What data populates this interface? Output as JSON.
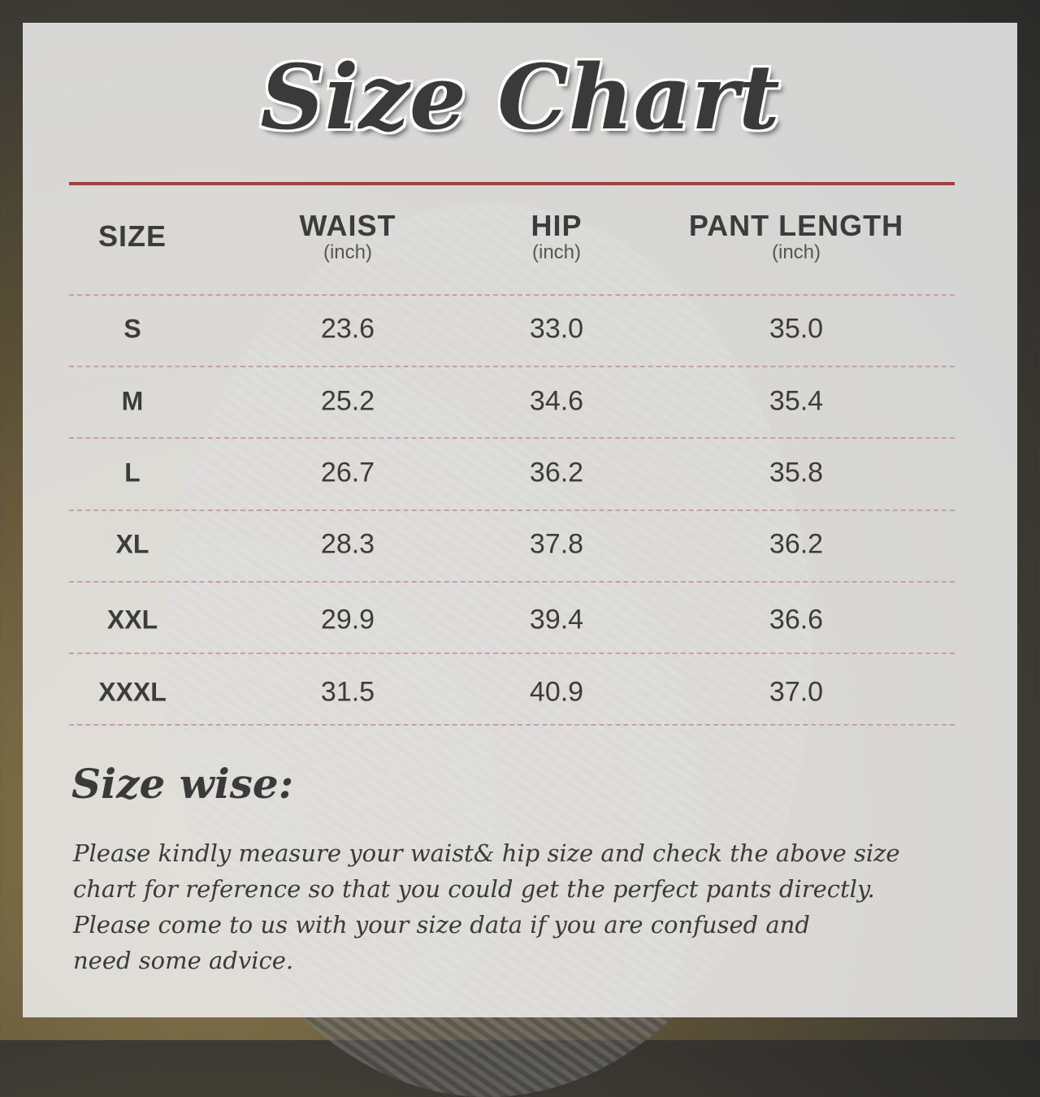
{
  "title": "Size Chart",
  "headers": [
    {
      "label": "SIZE",
      "unit": ""
    },
    {
      "label": "WAIST",
      "unit": "(inch)"
    },
    {
      "label": "HIP",
      "unit": "(inch)"
    },
    {
      "label": "PANT LENGTH",
      "unit": "(inch)"
    }
  ],
  "rows": [
    [
      "S",
      "23.6",
      "33.0",
      "35.0"
    ],
    [
      "M",
      "25.2",
      "34.6",
      "35.4"
    ],
    [
      "L",
      "26.7",
      "36.2",
      "35.8"
    ],
    [
      "XL",
      "28.3",
      "37.8",
      "36.2"
    ],
    [
      "XXL",
      "29.9",
      "39.4",
      "36.6"
    ],
    [
      "XXXL",
      "31.5",
      "40.9",
      "37.0"
    ]
  ],
  "note_title": "Size wise:",
  "note_lines": [
    "Please kindly measure your waist& hip size and check the above size",
    "chart for reference so that you could get the perfect pants directly.",
    "Please come to us with your size data if you are confused and",
    "need some advice."
  ],
  "colors": {
    "accent_line": "#a93c3c",
    "text": "#3c3c3c"
  }
}
